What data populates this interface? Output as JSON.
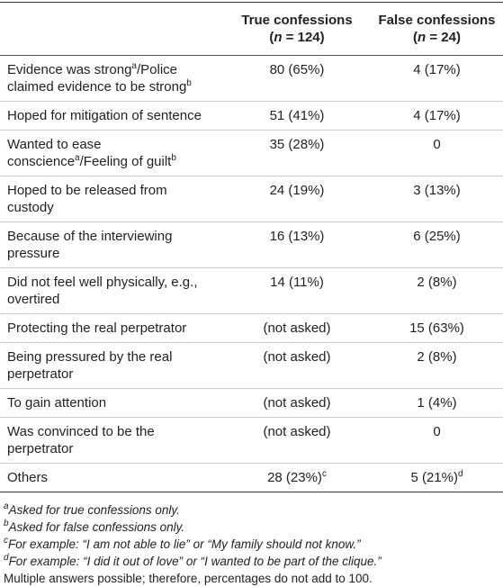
{
  "table": {
    "header": [
      [
        {
          "text": "True confessions"
        },
        {
          "text": "("
        },
        {
          "text": "n",
          "italic": true
        },
        {
          "text": " = 124)"
        }
      ],
      [
        {
          "text": "False confessions"
        },
        {
          "text": "("
        },
        {
          "text": "n",
          "italic": true
        },
        {
          "text": " = 24)"
        }
      ]
    ],
    "rows": [
      {
        "label": [
          {
            "text": "Evidence was strong",
            "sup": "a"
          },
          {
            "text": "/Police claimed evidence to be strong",
            "sup": "b"
          }
        ],
        "true": {
          "text": "80 (65%)"
        },
        "false": {
          "text": "4 (17%)"
        }
      },
      {
        "label": [
          {
            "text": "Hoped for mitigation of sentence"
          }
        ],
        "true": {
          "text": "51 (41%)"
        },
        "false": {
          "text": "4 (17%)"
        }
      },
      {
        "label": [
          {
            "text": "Wanted to ease conscience",
            "sup": "a"
          },
          {
            "text": "/Feeling of guilt",
            "sup": "b"
          }
        ],
        "true": {
          "text": "35 (28%)"
        },
        "false": {
          "text": "0"
        }
      },
      {
        "label": [
          {
            "text": "Hoped to be released from custody"
          }
        ],
        "true": {
          "text": "24 (19%)"
        },
        "false": {
          "text": "3 (13%)"
        }
      },
      {
        "label": [
          {
            "text": "Because of the interviewing pressure"
          }
        ],
        "true": {
          "text": "16 (13%)"
        },
        "false": {
          "text": "6 (25%)"
        }
      },
      {
        "label": [
          {
            "text": "Did not feel well physically, e.g., overtired"
          }
        ],
        "true": {
          "text": "14 (11%)"
        },
        "false": {
          "text": "2 (8%)"
        }
      },
      {
        "label": [
          {
            "text": "Protecting the real perpetrator"
          }
        ],
        "true": {
          "text": "(not asked)"
        },
        "false": {
          "text": "15 (63%)"
        }
      },
      {
        "label": [
          {
            "text": "Being pressured by the real perpetrator"
          }
        ],
        "true": {
          "text": "(not asked)"
        },
        "false": {
          "text": "2 (8%)"
        }
      },
      {
        "label": [
          {
            "text": "To gain attention"
          }
        ],
        "true": {
          "text": "(not asked)"
        },
        "false": {
          "text": "1 (4%)"
        }
      },
      {
        "label": [
          {
            "text": "Was convinced to be the perpetrator"
          }
        ],
        "true": {
          "text": "(not asked)"
        },
        "false": {
          "text": "0"
        }
      },
      {
        "label": [
          {
            "text": "Others"
          }
        ],
        "true": {
          "text": "28 (23%)",
          "sup": "c"
        },
        "false": {
          "text": "5 (21%)",
          "sup": "d"
        }
      }
    ],
    "footnotes": [
      {
        "mark": "a",
        "text": "Asked for true confessions only."
      },
      {
        "mark": "b",
        "text": "Asked for false confessions only."
      },
      {
        "mark": "c",
        "text": "For example: “I am not able to lie” or “My family should not know.”"
      },
      {
        "mark": "d",
        "text": "For example: “I did it out of love” or “I wanted to be part of the clique.”"
      },
      {
        "text": "Multiple answers possible; therefore, percentages do not add to 100."
      }
    ]
  }
}
